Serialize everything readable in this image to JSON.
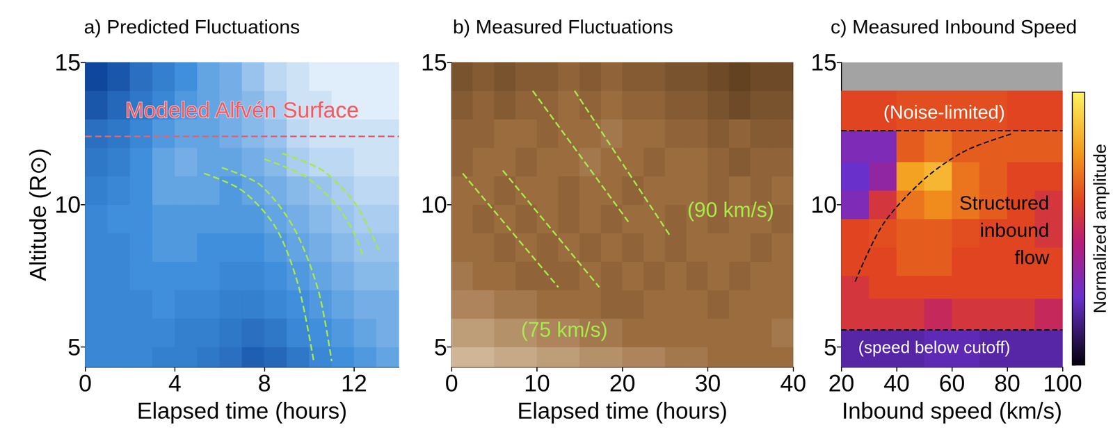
{
  "chart_data": [
    {
      "type": "heatmap",
      "title": "a) Predicted Fluctuations",
      "x_label": "Elapsed time (hours)",
      "y_label": "Altitude (R⊙)",
      "xlim": [
        0,
        14
      ],
      "xticks": [
        0,
        4,
        8,
        12
      ],
      "ylim": [
        4.3,
        15
      ],
      "yticks": [
        5,
        10,
        15
      ],
      "cells": {
        "x_edges": [
          0,
          1,
          2,
          3,
          4,
          5,
          6,
          7,
          8,
          9,
          10,
          11,
          12,
          13,
          14
        ],
        "y_edges": [
          4.3,
          5,
          6,
          7,
          8,
          9,
          10,
          11,
          12,
          13,
          14,
          15
        ],
        "zlim": [
          0,
          1
        ],
        "z": [
          [
            0.45,
            0.45,
            0.45,
            0.4,
            0.4,
            0.35,
            0.3,
            0.2,
            0.25,
            0.35,
            0.45,
            0.5,
            0.55,
            0.6
          ],
          [
            0.45,
            0.45,
            0.45,
            0.45,
            0.4,
            0.4,
            0.35,
            0.3,
            0.35,
            0.45,
            0.5,
            0.55,
            0.6,
            0.65
          ],
          [
            0.45,
            0.45,
            0.45,
            0.5,
            0.45,
            0.45,
            0.4,
            0.4,
            0.45,
            0.5,
            0.55,
            0.6,
            0.65,
            0.65
          ],
          [
            0.45,
            0.45,
            0.5,
            0.5,
            0.5,
            0.5,
            0.45,
            0.45,
            0.5,
            0.55,
            0.6,
            0.65,
            0.7,
            0.7
          ],
          [
            0.45,
            0.45,
            0.5,
            0.55,
            0.55,
            0.5,
            0.5,
            0.5,
            0.55,
            0.6,
            0.65,
            0.7,
            0.75,
            0.75
          ],
          [
            0.45,
            0.5,
            0.5,
            0.55,
            0.55,
            0.55,
            0.55,
            0.55,
            0.6,
            0.65,
            0.7,
            0.75,
            0.8,
            0.8
          ],
          [
            0.4,
            0.45,
            0.5,
            0.6,
            0.6,
            0.6,
            0.55,
            0.6,
            0.65,
            0.7,
            0.75,
            0.8,
            0.85,
            0.85
          ],
          [
            0.35,
            0.4,
            0.5,
            0.6,
            0.65,
            0.6,
            0.6,
            0.65,
            0.7,
            0.8,
            0.85,
            0.85,
            0.9,
            0.9
          ],
          [
            0.3,
            0.35,
            0.45,
            0.55,
            0.6,
            0.6,
            0.65,
            0.7,
            0.75,
            0.85,
            0.9,
            0.9,
            0.9,
            0.9
          ],
          [
            0.15,
            0.25,
            0.35,
            0.45,
            0.55,
            0.6,
            0.65,
            0.7,
            0.8,
            0.9,
            0.9,
            0.95,
            0.95,
            0.95
          ],
          [
            0.05,
            0.15,
            0.3,
            0.4,
            0.5,
            0.6,
            0.65,
            0.75,
            0.85,
            0.9,
            0.95,
            0.95,
            0.95,
            0.95
          ]
        ]
      },
      "curves": [
        {
          "color": "#a6e84a",
          "line_style": "dashed",
          "points": [
            [
              5.3,
              11.1
            ],
            [
              7.0,
              10.5
            ],
            [
              8.5,
              9.2
            ],
            [
              9.5,
              7.2
            ],
            [
              10.2,
              4.5
            ]
          ]
        },
        {
          "color": "#a6e84a",
          "line_style": "dashed",
          "points": [
            [
              6.1,
              11.3
            ],
            [
              7.8,
              10.7
            ],
            [
              9.3,
              9.2
            ],
            [
              10.4,
              7.0
            ],
            [
              11.0,
              4.5
            ]
          ]
        },
        {
          "color": "#a6e84a",
          "line_style": "dashed",
          "points": [
            [
              8.0,
              11.6
            ],
            [
              9.8,
              11.0
            ],
            [
              11.2,
              10.0
            ],
            [
              12.0,
              9.0
            ],
            [
              12.4,
              8.2
            ]
          ]
        },
        {
          "color": "#a6e84a",
          "line_style": "dashed",
          "points": [
            [
              8.8,
              11.8
            ],
            [
              10.6,
              11.2
            ],
            [
              12.0,
              10.1
            ],
            [
              12.7,
              9.1
            ],
            [
              13.1,
              8.4
            ]
          ]
        }
      ],
      "annotations": [
        {
          "text": "Modeled Alfvén Surface",
          "y": 12.4,
          "color": "#e8606a",
          "line_style": "dashed"
        }
      ]
    },
    {
      "type": "heatmap",
      "title": "b) Measured Fluctuations",
      "x_label": "Elapsed time (hours)",
      "xlim": [
        0,
        40
      ],
      "xticks": [
        0,
        10,
        20,
        30,
        40
      ],
      "ylim": [
        4.3,
        15
      ],
      "yticks": [
        5,
        10,
        15
      ],
      "cells": {
        "x_edges": [
          0,
          2.5,
          5,
          7.5,
          10,
          12.5,
          15,
          17.5,
          20,
          22.5,
          25,
          27.5,
          30,
          32.5,
          35,
          37.5,
          40
        ],
        "y_edges": [
          4.3,
          5,
          6,
          7,
          8,
          9,
          10,
          11,
          12,
          13,
          14,
          15
        ],
        "zlim": [
          0,
          1
        ],
        "z": [
          [
            0.8,
            0.8,
            0.75,
            0.75,
            0.7,
            0.7,
            0.65,
            0.65,
            0.6,
            0.6,
            0.55,
            0.55,
            0.5,
            0.5,
            0.5,
            0.5
          ],
          [
            0.7,
            0.7,
            0.65,
            0.65,
            0.6,
            0.6,
            0.55,
            0.55,
            0.5,
            0.5,
            0.5,
            0.5,
            0.5,
            0.5,
            0.5,
            0.55
          ],
          [
            0.6,
            0.6,
            0.55,
            0.55,
            0.5,
            0.5,
            0.5,
            0.45,
            0.45,
            0.5,
            0.5,
            0.5,
            0.45,
            0.5,
            0.5,
            0.5
          ],
          [
            0.55,
            0.5,
            0.5,
            0.45,
            0.45,
            0.45,
            0.5,
            0.45,
            0.5,
            0.45,
            0.5,
            0.45,
            0.5,
            0.45,
            0.5,
            0.5
          ],
          [
            0.5,
            0.5,
            0.45,
            0.5,
            0.45,
            0.5,
            0.45,
            0.5,
            0.45,
            0.5,
            0.45,
            0.5,
            0.5,
            0.5,
            0.45,
            0.5
          ],
          [
            0.5,
            0.45,
            0.5,
            0.45,
            0.5,
            0.45,
            0.5,
            0.45,
            0.5,
            0.5,
            0.45,
            0.5,
            0.45,
            0.5,
            0.5,
            0.45
          ],
          [
            0.5,
            0.5,
            0.45,
            0.5,
            0.5,
            0.45,
            0.5,
            0.5,
            0.45,
            0.5,
            0.5,
            0.5,
            0.45,
            0.5,
            0.45,
            0.5
          ],
          [
            0.45,
            0.5,
            0.5,
            0.45,
            0.5,
            0.5,
            0.55,
            0.5,
            0.5,
            0.45,
            0.5,
            0.5,
            0.45,
            0.4,
            0.45,
            0.45
          ],
          [
            0.45,
            0.45,
            0.5,
            0.5,
            0.45,
            0.5,
            0.5,
            0.55,
            0.5,
            0.5,
            0.45,
            0.45,
            0.4,
            0.45,
            0.4,
            0.4
          ],
          [
            0.4,
            0.45,
            0.4,
            0.45,
            0.45,
            0.5,
            0.45,
            0.5,
            0.45,
            0.45,
            0.4,
            0.4,
            0.35,
            0.3,
            0.35,
            0.35
          ],
          [
            0.35,
            0.4,
            0.35,
            0.4,
            0.4,
            0.45,
            0.4,
            0.45,
            0.4,
            0.4,
            0.35,
            0.35,
            0.3,
            0.25,
            0.3,
            0.3
          ]
        ]
      },
      "curves": [
        {
          "color": "#a6e84a",
          "line_style": "dashed",
          "points": [
            [
              1.3,
              11.1
            ],
            [
              12.5,
              7.1
            ]
          ]
        },
        {
          "color": "#a6e84a",
          "line_style": "dashed",
          "points": [
            [
              6.0,
              11.2
            ],
            [
              17.3,
              7.1
            ]
          ]
        },
        {
          "color": "#a6e84a",
          "line_style": "dashed",
          "points": [
            [
              9.5,
              14.0
            ],
            [
              20.7,
              9.4
            ]
          ]
        },
        {
          "color": "#a6e84a",
          "line_style": "dashed",
          "points": [
            [
              14.4,
              14.0
            ],
            [
              25.6,
              8.9
            ]
          ]
        }
      ],
      "annotations": [
        {
          "text": "(75 km/s)",
          "color": "#a6e84a"
        },
        {
          "text": "(90 km/s)",
          "color": "#a6e84a"
        }
      ]
    },
    {
      "type": "heatmap",
      "title": "c) Measured Inbound Speed",
      "x_label": "Inbound speed (km/s)",
      "xlim": [
        20,
        100
      ],
      "xticks": [
        20,
        40,
        60,
        80,
        100
      ],
      "ylim": [
        4.3,
        15
      ],
      "yticks": [
        5,
        10,
        15
      ],
      "cells": {
        "x_edges": [
          20,
          30,
          40,
          50,
          60,
          70,
          80,
          90,
          100
        ],
        "y_edges": [
          4.3,
          5.6,
          6.7,
          7.5,
          8.5,
          9.5,
          10.5,
          11.5,
          12.6,
          14
        ],
        "zlim": [
          0,
          1
        ],
        "z": [
          [
            0.2,
            0.2,
            0.2,
            0.22,
            0.22,
            0.2,
            0.2,
            0.2
          ],
          [
            0.55,
            0.55,
            0.55,
            0.5,
            0.55,
            0.55,
            0.55,
            0.5
          ],
          [
            0.55,
            0.6,
            0.6,
            0.6,
            0.6,
            0.6,
            0.6,
            0.6
          ],
          [
            0.6,
            0.6,
            0.65,
            0.65,
            0.6,
            0.6,
            0.6,
            0.6
          ],
          [
            0.6,
            0.62,
            0.65,
            0.65,
            0.62,
            0.6,
            0.6,
            0.55
          ],
          [
            0.3,
            0.55,
            0.7,
            0.75,
            0.7,
            0.65,
            0.6,
            0.55
          ],
          [
            0.25,
            0.35,
            0.8,
            0.85,
            0.7,
            0.65,
            0.6,
            0.6
          ],
          [
            0.3,
            0.3,
            0.65,
            0.7,
            0.65,
            0.65,
            0.65,
            0.65
          ],
          [
            0.6,
            0.6,
            0.62,
            0.62,
            0.62,
            0.62,
            0.6,
            0.6
          ]
        ]
      },
      "colorbar": {
        "label": "Normalized amplitude",
        "range": [
          0,
          1
        ],
        "ticks": [
          0,
          0.25,
          0.5,
          0.75,
          1
        ],
        "tick_labels": false
      },
      "curves": [
        {
          "color": "#000000",
          "line_style": "dashed",
          "points": [
            [
              25,
              7.3
            ],
            [
              35,
              9.3
            ],
            [
              50,
              10.9
            ],
            [
              65,
              11.9
            ],
            [
              82,
              12.5
            ]
          ]
        }
      ],
      "hlines": [
        {
          "y": 12.6,
          "color": "#000000",
          "line_style": "dashed"
        },
        {
          "y": 5.6,
          "color": "#000000",
          "line_style": "dashed"
        }
      ],
      "annotations": [
        {
          "text": "(Noise-limited)",
          "color": "#ffffff"
        },
        {
          "text": "Structured inbound flow",
          "color": "#000000"
        },
        {
          "text": "(speed below cutoff)",
          "color": "#ffffff"
        }
      ]
    }
  ]
}
